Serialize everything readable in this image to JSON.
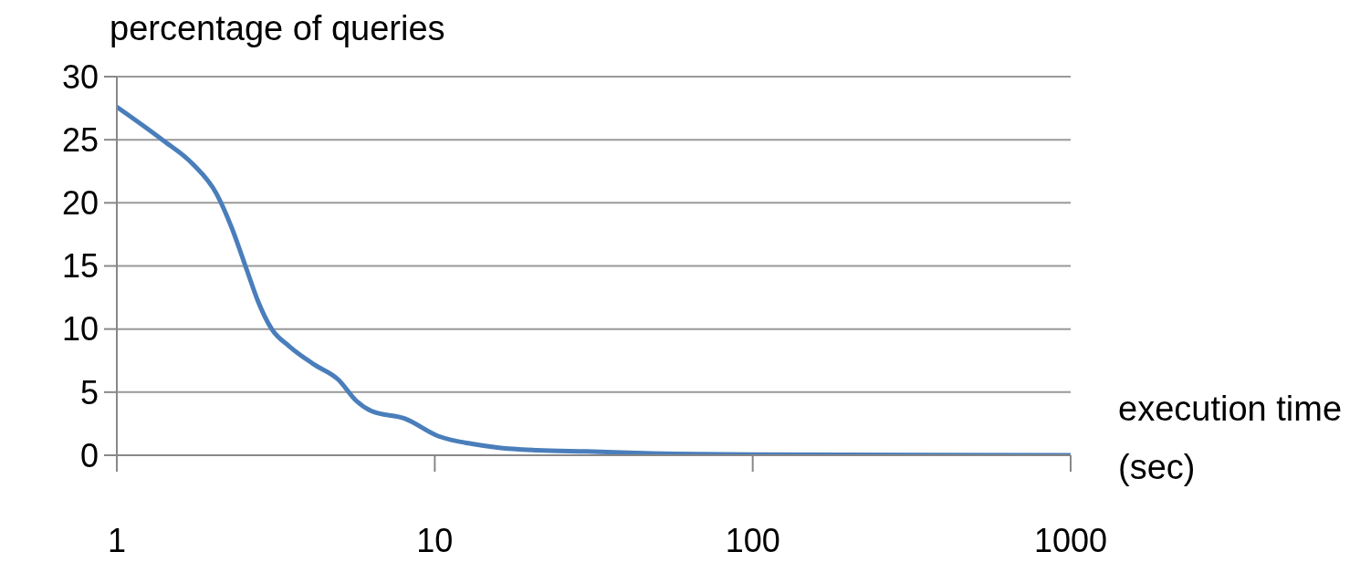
{
  "chart_data": {
    "type": "line",
    "ylabel": "percentage of queries",
    "xlabel": "execution time (sec)",
    "log": "x",
    "xlim": [
      1,
      1000
    ],
    "xticks": [
      1,
      10,
      100,
      1000
    ],
    "ylim": [
      0,
      30
    ],
    "yticks": [
      0,
      5,
      10,
      15,
      20,
      25,
      30
    ],
    "grid": "y",
    "legend": false,
    "series": [
      {
        "color": "#4a7ebb",
        "x": [
          1,
          1.39,
          1.73,
          2.06,
          2.3,
          2.57,
          2.78,
          3.07,
          3.5,
          4.17,
          4.97,
          5.67,
          6.32,
          8.06,
          10.3,
          13.1,
          15.9,
          21,
          30,
          48,
          100,
          1000
        ],
        "values": [
          27.6,
          25.0,
          23.1,
          20.7,
          18.0,
          14.6,
          12.2,
          10.0,
          8.6,
          7.2,
          6.0,
          4.3,
          3.5,
          2.9,
          1.5,
          0.9,
          0.6,
          0.4,
          0.3,
          0.15,
          0.05,
          0
        ]
      }
    ]
  }
}
